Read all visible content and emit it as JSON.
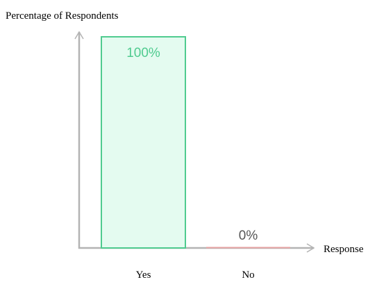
{
  "chart_data": {
    "type": "bar",
    "title": "",
    "ylabel": "Percentage of Respondents",
    "xlabel": "Response",
    "categories": [
      "Yes",
      "No"
    ],
    "values": [
      100,
      0
    ],
    "data_labels": [
      "100%",
      "0%"
    ],
    "ylim": [
      0,
      100
    ],
    "grid": false,
    "legend": "none",
    "colors": {
      "bar_fill": [
        "#e4fbf0",
        "#fbeeee"
      ],
      "bar_stroke": [
        "#4fcb8f",
        "#e6a3a3"
      ],
      "data_label": [
        "#4fcb8f",
        "#555555"
      ],
      "axis": "#b3b3b3",
      "text": "#000000"
    }
  }
}
